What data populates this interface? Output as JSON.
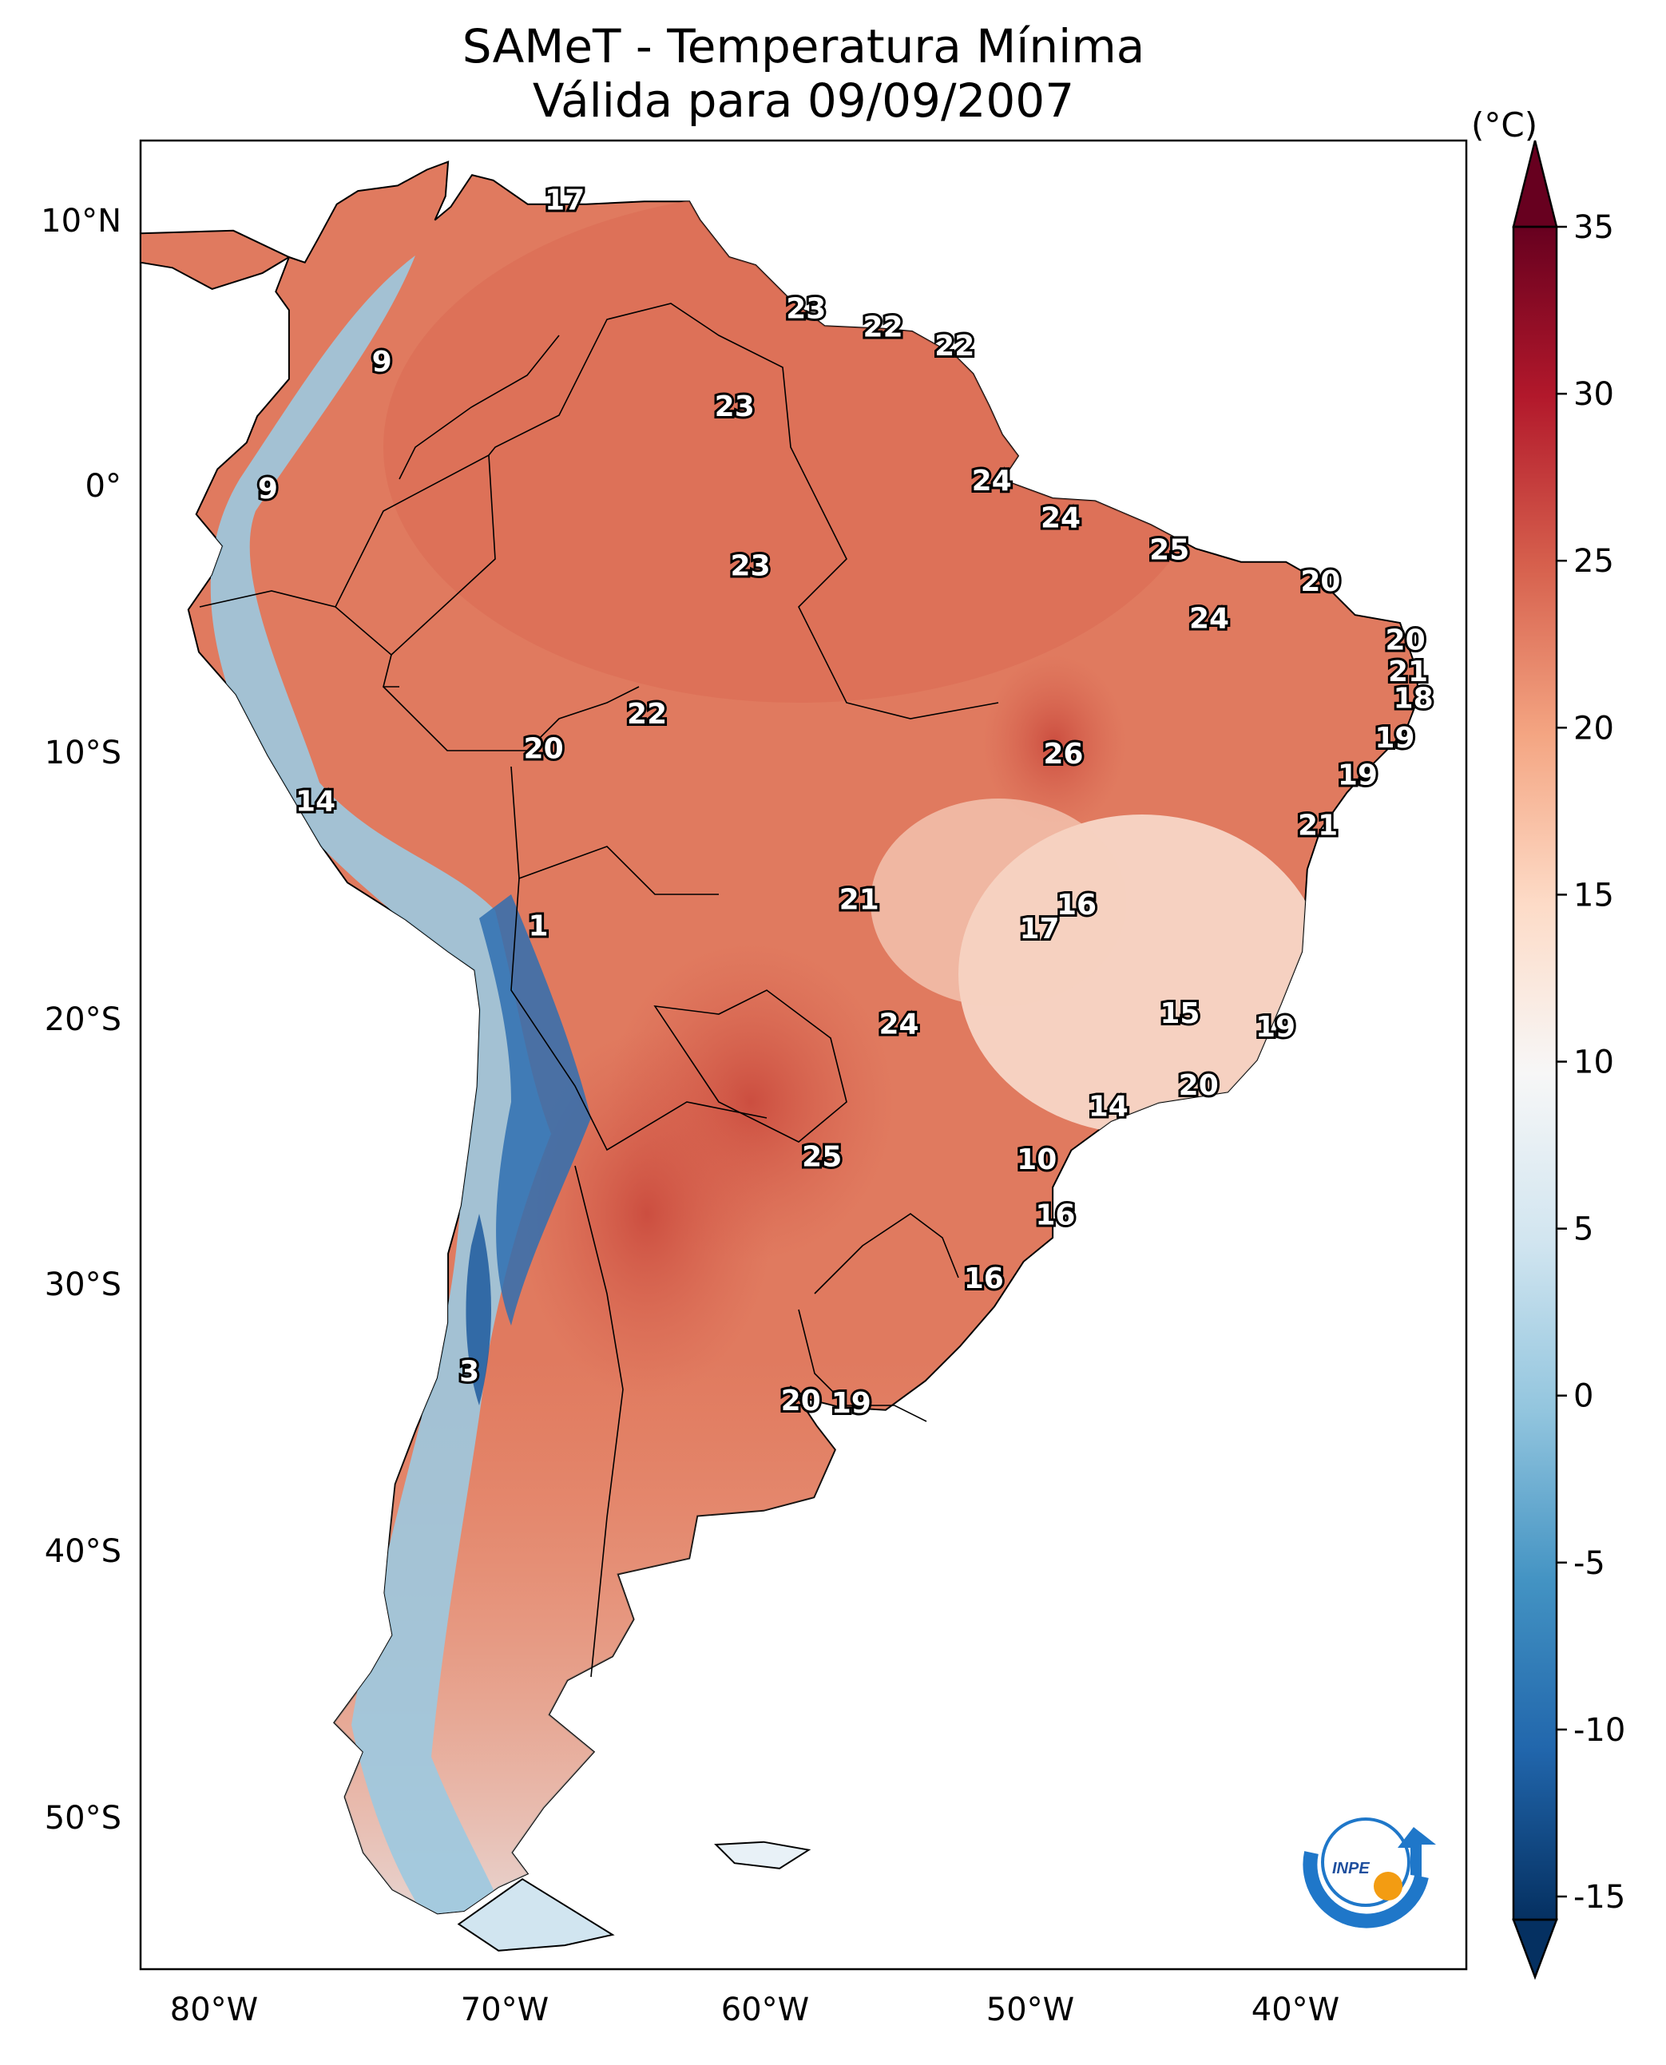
{
  "title_line1": "SAMeT - Temperatura Mínima",
  "title_line2": "Válida para 09/09/2007",
  "colorbar": {
    "unit_label": "(°C)",
    "ticks": [
      "35",
      "30",
      "25",
      "20",
      "15",
      "10",
      "5",
      "0",
      "-5",
      "-10",
      "-15"
    ],
    "range": [
      -17,
      37
    ],
    "colors": [
      "#053061",
      "#2166ac",
      "#4393c3",
      "#92c5de",
      "#d1e5f0",
      "#f7f7f7",
      "#fddbc7",
      "#f4a582",
      "#d6604d",
      "#b2182b",
      "#67001f"
    ]
  },
  "axes": {
    "lon_ticks": [
      "80°W",
      "70°W",
      "60°W",
      "50°W",
      "40°W"
    ],
    "lat_ticks": [
      "10°N",
      "0°",
      "10°S",
      "20°S",
      "30°S",
      "40°S",
      "50°S"
    ]
  },
  "logo": {
    "text": "INPE",
    "colors": [
      "#1f77c9",
      "#f39c12"
    ]
  },
  "labels": [
    {
      "v": "17",
      "lon": -67,
      "lat": 10.7
    },
    {
      "v": "9",
      "lon": -73.9,
      "lat": 4.6
    },
    {
      "v": "9",
      "lon": -78.2,
      "lat": -0.2
    },
    {
      "v": "23",
      "lon": -57.9,
      "lat": 6.6
    },
    {
      "v": "22",
      "lon": -55,
      "lat": 5.9
    },
    {
      "v": "22",
      "lon": -52.3,
      "lat": 5.2
    },
    {
      "v": "23",
      "lon": -60.6,
      "lat": 2.9
    },
    {
      "v": "24",
      "lon": -50.9,
      "lat": 0.1
    },
    {
      "v": "24",
      "lon": -48.3,
      "lat": -1.3
    },
    {
      "v": "25",
      "lon": -44.2,
      "lat": -2.5
    },
    {
      "v": "23",
      "lon": -60,
      "lat": -3.1
    },
    {
      "v": "20",
      "lon": -38.5,
      "lat": -3.7
    },
    {
      "v": "24",
      "lon": -42.7,
      "lat": -5.1
    },
    {
      "v": "20",
      "lon": -35.3,
      "lat": -5.9
    },
    {
      "v": "21",
      "lon": -35.2,
      "lat": -7.1
    },
    {
      "v": "18",
      "lon": -35,
      "lat": -8.1
    },
    {
      "v": "22",
      "lon": -63.9,
      "lat": -8.7
    },
    {
      "v": "20",
      "lon": -67.8,
      "lat": -10
    },
    {
      "v": "26",
      "lon": -48.2,
      "lat": -10.2
    },
    {
      "v": "19",
      "lon": -35.7,
      "lat": -9.6
    },
    {
      "v": "19",
      "lon": -37.1,
      "lat": -11
    },
    {
      "v": "14",
      "lon": -76.4,
      "lat": -12
    },
    {
      "v": "21",
      "lon": -38.6,
      "lat": -12.9
    },
    {
      "v": "21",
      "lon": -55.9,
      "lat": -15.7
    },
    {
      "v": "16",
      "lon": -47.7,
      "lat": -15.9
    },
    {
      "v": "17",
      "lon": -49.1,
      "lat": -16.8
    },
    {
      "v": "1",
      "lon": -68,
      "lat": -16.7
    },
    {
      "v": "15",
      "lon": -43.8,
      "lat": -20
    },
    {
      "v": "24",
      "lon": -54.4,
      "lat": -20.4
    },
    {
      "v": "19",
      "lon": -40.2,
      "lat": -20.5
    },
    {
      "v": "20",
      "lon": -43.1,
      "lat": -22.7
    },
    {
      "v": "14",
      "lon": -46.5,
      "lat": -23.5
    },
    {
      "v": "25",
      "lon": -57.3,
      "lat": -25.4
    },
    {
      "v": "10",
      "lon": -49.2,
      "lat": -25.5
    },
    {
      "v": "16",
      "lon": -48.5,
      "lat": -27.6
    },
    {
      "v": "16",
      "lon": -51.2,
      "lat": -30
    },
    {
      "v": "3",
      "lon": -70.6,
      "lat": -33.5
    },
    {
      "v": "20",
      "lon": -58.1,
      "lat": -34.6
    },
    {
      "v": "19",
      "lon": -56.2,
      "lat": -34.7
    }
  ]
}
